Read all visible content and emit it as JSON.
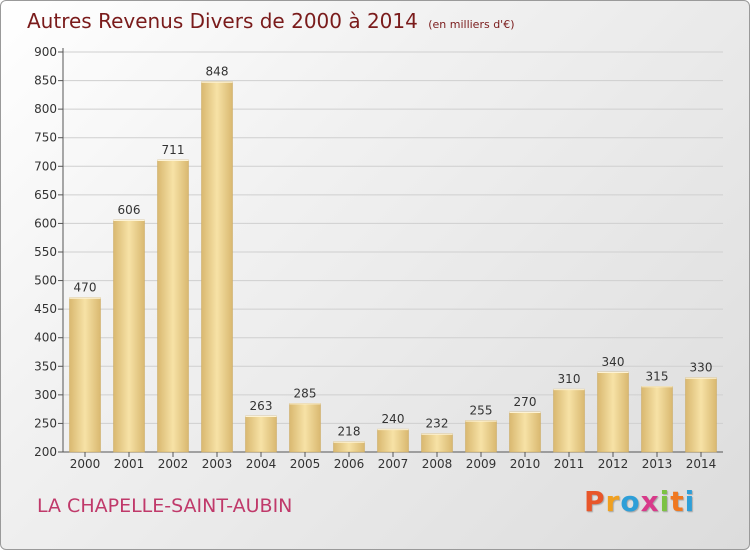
{
  "header": {
    "title": "Autres Revenus Divers de 2000 à 2014",
    "unit": "(en milliers d'€)"
  },
  "footer": {
    "place": "LA CHAPELLE-SAINT-AUBIN",
    "brand": "Proxiti",
    "brand_colors": [
      "#e8562a",
      "#f0a020",
      "#2e9fd8",
      "#d83a8a",
      "#7cc242",
      "#f07820",
      "#2e9fd8"
    ]
  },
  "colors": {
    "bar_light": "#f7e2a6",
    "bar_dark": "#d9b870",
    "grid": "#cfcfcf",
    "axis": "#555555",
    "text": "#333333",
    "title": "#7a1b1b",
    "place": "#c0396a"
  },
  "chart_data": {
    "type": "bar",
    "title": "Autres Revenus Divers de 2000 à 2014",
    "subtitle": "(en milliers d'€)",
    "categories": [
      "2000",
      "2001",
      "2002",
      "2003",
      "2004",
      "2005",
      "2006",
      "2007",
      "2008",
      "2009",
      "2010",
      "2011",
      "2012",
      "2013",
      "2014"
    ],
    "values": [
      470,
      606,
      711,
      848,
      263,
      285,
      218,
      240,
      232,
      255,
      270,
      310,
      340,
      315,
      330
    ],
    "ylim": [
      200,
      900
    ],
    "yticks": [
      200,
      250,
      300,
      350,
      400,
      450,
      500,
      550,
      600,
      650,
      700,
      750,
      800,
      850,
      900
    ],
    "grid": true,
    "data_labels": true
  }
}
